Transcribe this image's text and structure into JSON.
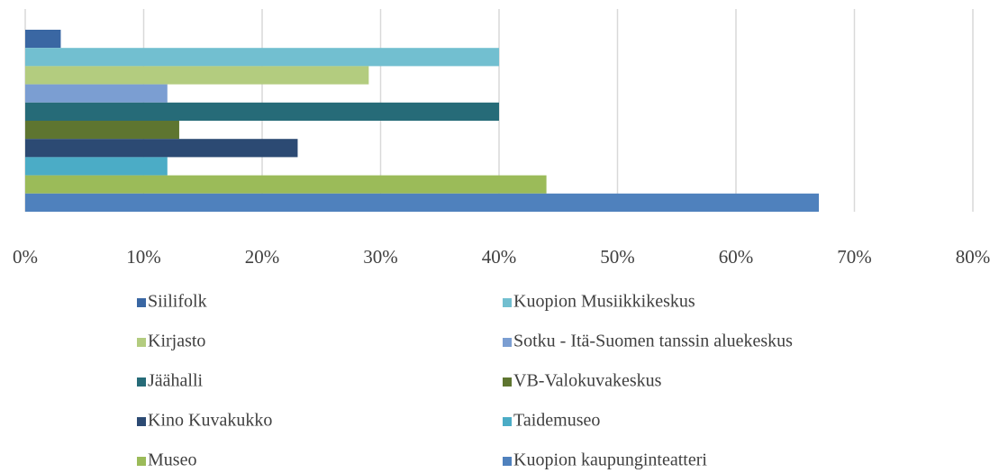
{
  "chart_data": {
    "type": "bar",
    "orientation": "horizontal",
    "categories": [
      null
    ],
    "series": [
      {
        "name": "Siilifolk",
        "color": "#3a67a3",
        "values": [
          3
        ]
      },
      {
        "name": "Kuopion Musiikkikeskus",
        "color": "#72bfd0",
        "values": [
          40
        ]
      },
      {
        "name": "Kirjasto",
        "color": "#b3cc7f",
        "values": [
          29
        ]
      },
      {
        "name": "Sotku - Itä-Suomen tanssin aluekeskus",
        "color": "#7b9ed2",
        "values": [
          12
        ]
      },
      {
        "name": "Jäähalli",
        "color": "#266b78",
        "values": [
          40
        ]
      },
      {
        "name": "VB-Valokuvakeskus",
        "color": "#5e7530",
        "values": [
          13
        ]
      },
      {
        "name": "Kino Kuvakukko",
        "color": "#2c4a73",
        "values": [
          23
        ]
      },
      {
        "name": "Taidemuseo",
        "color": "#4bacc6",
        "values": [
          12
        ]
      },
      {
        "name": "Museo",
        "color": "#9bbb59",
        "values": [
          44
        ]
      },
      {
        "name": "Kuopion kaupunginteatteri",
        "color": "#4f81bd",
        "values": [
          67
        ]
      }
    ],
    "xlim": [
      0,
      80
    ],
    "xticks": [
      {
        "value": 0,
        "label": "0%"
      },
      {
        "value": 10,
        "label": "10%"
      },
      {
        "value": 20,
        "label": "20%"
      },
      {
        "value": 30,
        "label": "30%"
      },
      {
        "value": 40,
        "label": "40%"
      },
      {
        "value": 50,
        "label": "50%"
      },
      {
        "value": 60,
        "label": "60%"
      },
      {
        "value": 70,
        "label": "70%"
      },
      {
        "value": 80,
        "label": "80%"
      }
    ],
    "grid": true,
    "legend": "bottom"
  }
}
